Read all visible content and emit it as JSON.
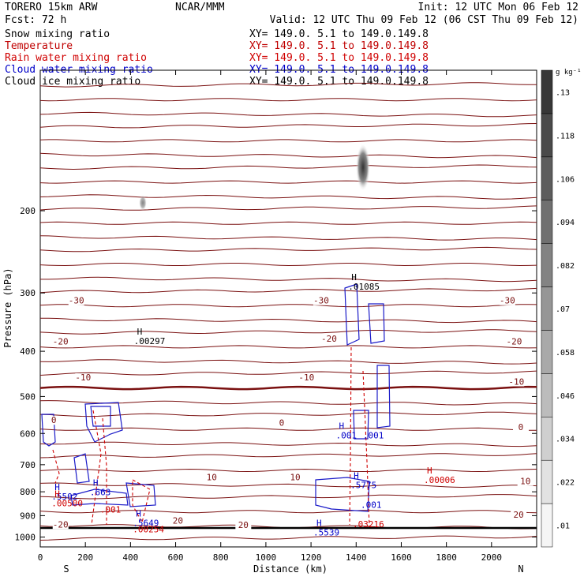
{
  "header": {
    "left1": "TORERO  15km ARW",
    "center1": "NCAR/MMM",
    "right1": "Init: 12 UTC Mon 06 Feb 12",
    "left2": "Fcst:   72 h",
    "right2": "Valid: 12 UTC Thu 09 Feb 12 (06 CST Thu 09 Feb 12)"
  },
  "legend": [
    {
      "name": "Snow mixing ratio",
      "xy": "XY= 149.0.  5.1 to 149.0.149.8",
      "color": "#000000"
    },
    {
      "name": "Temperature",
      "xy": "XY= 149.0.  5.1 to 149.0.149.8",
      "color": "#c00000"
    },
    {
      "name": "Rain water mixing ratio",
      "xy": "XY= 149.0.  5.1 to 149.0.149.8",
      "color": "#d00000"
    },
    {
      "name": "Cloud water mixing ratio",
      "xy": "XY= 149.0.  5.1 to 149.0.149.8",
      "color": "#0000c8"
    },
    {
      "name": "Cloud ice mixing ratio",
      "xy": "XY= 149.0.  5.1 to 149.0.149.8",
      "color": "#000000"
    }
  ],
  "chart_data": {
    "type": "line",
    "xlabel": "Distance (km)",
    "ylabel": "Pressure (hPa)",
    "xlim": [
      0,
      2200
    ],
    "ylim": [
      1050,
      100
    ],
    "y_scale": "log",
    "x_ticks": [
      0,
      200,
      400,
      600,
      800,
      1000,
      1200,
      1400,
      1600,
      1800,
      2000
    ],
    "y_ticks": [
      200,
      300,
      400,
      500,
      600,
      700,
      800,
      900,
      1000
    ],
    "x_end_labels": {
      "left": "S",
      "right": "N"
    },
    "colorbar": {
      "unit": "g kg⁻¹",
      "ticks": [
        ".01",
        ".022",
        ".034",
        ".046",
        ".058",
        ".07",
        ".082",
        ".094",
        ".106",
        ".118",
        ".13"
      ]
    },
    "temperature_labels": [
      {
        "text": "-30",
        "x": 160,
        "p": 315
      },
      {
        "text": "-30",
        "x": 1245,
        "p": 315
      },
      {
        "text": "-30",
        "x": 2070,
        "p": 315
      },
      {
        "text": "-20",
        "x": 90,
        "p": 385
      },
      {
        "text": "-20",
        "x": 1280,
        "p": 380
      },
      {
        "text": "-20",
        "x": 2100,
        "p": 385
      },
      {
        "text": "-10",
        "x": 190,
        "p": 460
      },
      {
        "text": "-10",
        "x": 1180,
        "p": 460
      },
      {
        "text": "-10",
        "x": 2110,
        "p": 470
      },
      {
        "text": "0",
        "x": 60,
        "p": 568
      },
      {
        "text": "0",
        "x": 1070,
        "p": 575
      },
      {
        "text": "0",
        "x": 2130,
        "p": 588
      },
      {
        "text": "10",
        "x": 760,
        "p": 752
      },
      {
        "text": "10",
        "x": 1130,
        "p": 752
      },
      {
        "text": "10",
        "x": 2150,
        "p": 768
      },
      {
        "text": "20",
        "x": 610,
        "p": 933
      },
      {
        "text": "20",
        "x": 900,
        "p": 952
      },
      {
        "text": "20",
        "x": 2120,
        "p": 906
      },
      {
        "text": "-20",
        "x": 90,
        "p": 950
      }
    ],
    "extrema_labels": [
      {
        "mark": "H",
        "value": ".00297",
        "x": 450,
        "p": 383,
        "color": "#000000"
      },
      {
        "mark": "H",
        "value": ".01085",
        "x": 1400,
        "p": 293,
        "color": "#000000"
      },
      {
        "mark": "H",
        "value": ".001",
        "x": 1345,
        "p": 610,
        "color": "#0000c8"
      },
      {
        "mark": "",
        "value": ".001",
        "x": 1465,
        "p": 610,
        "color": "#0000c8"
      },
      {
        "mark": "H",
        "value": ".00006",
        "x": 1735,
        "p": 760,
        "color": "#d00000"
      },
      {
        "mark": "H",
        "value": ".5775",
        "x": 1410,
        "p": 780,
        "color": "#0000c8"
      },
      {
        "mark": "",
        "value": ".001",
        "x": 1455,
        "p": 860,
        "color": "#0000c8"
      },
      {
        "mark": "H",
        "value": ".5502",
        "x": 85,
        "p": 825,
        "color": "#0000c8"
      },
      {
        "mark": "H",
        "value": ".00500",
        "x": 85,
        "p": 853,
        "color": "#d00000"
      },
      {
        "mark": "H",
        "value": ".663",
        "x": 255,
        "p": 808,
        "color": "#0000c8"
      },
      {
        "mark": "",
        "value": ".001",
        "x": 300,
        "p": 880,
        "color": "#d00000"
      },
      {
        "mark": "H",
        "value": ".5649",
        "x": 445,
        "p": 940,
        "color": "#0000c8"
      },
      {
        "mark": "",
        "value": ".00254",
        "x": 445,
        "p": 970,
        "color": "#d00000"
      },
      {
        "mark": "H",
        "value": ".5539",
        "x": 1245,
        "p": 985,
        "color": "#0000c8"
      },
      {
        "mark": "",
        "value": ".03216",
        "x": 1420,
        "p": 945,
        "color": "#d00000"
      }
    ]
  }
}
